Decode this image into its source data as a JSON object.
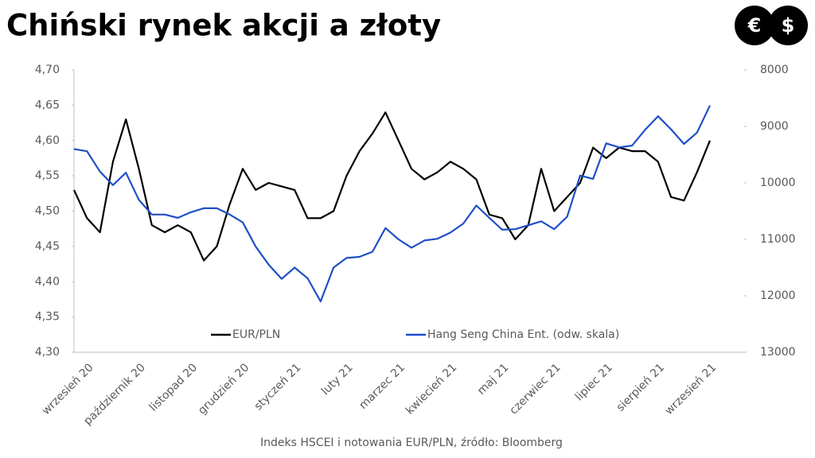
{
  "chart_data": {
    "type": "line",
    "title": "Chiński rynek akcji a złoty",
    "source": "Indeks HSCEI i notowania EUR/PLN, źródło: Bloomberg",
    "logo": [
      "€",
      "$"
    ],
    "categories": [
      "wrzesień 20",
      null,
      null,
      null,
      "październik 20",
      null,
      null,
      null,
      "listopad 20",
      null,
      null,
      null,
      "grudzień 20",
      null,
      null,
      null,
      "styczeń 21",
      null,
      null,
      null,
      "luty 21",
      null,
      null,
      null,
      "marzec 21",
      null,
      null,
      null,
      "kwiecień 21",
      null,
      null,
      null,
      "maj 21",
      null,
      null,
      null,
      "czerwiec 21",
      null,
      null,
      null,
      "lipiec 21",
      null,
      null,
      null,
      "sierpień 21",
      null,
      null,
      null,
      "wrzesień 21",
      null
    ],
    "ylim": [
      4.3,
      4.7
    ],
    "yticks": [
      {
        "value": 4.3,
        "label": "4,30"
      },
      {
        "value": 4.35,
        "label": "4,35"
      },
      {
        "value": 4.4,
        "label": "4,40"
      },
      {
        "value": 4.45,
        "label": "4,45"
      },
      {
        "value": 4.5,
        "label": "4,50"
      },
      {
        "value": 4.55,
        "label": "4,55"
      },
      {
        "value": 4.6,
        "label": "4,60"
      },
      {
        "value": 4.65,
        "label": "4,65"
      },
      {
        "value": 4.7,
        "label": "4,70"
      }
    ],
    "y2lim": [
      13000,
      8000
    ],
    "y2ticks": [
      13000,
      12000,
      11000,
      10000,
      9000,
      8000
    ],
    "series": [
      {
        "name": "EUR/PLN",
        "color": "#000000",
        "values": [
          4.53,
          4.49,
          4.47,
          4.57,
          4.63,
          4.56,
          4.48,
          4.47,
          4.48,
          4.47,
          4.43,
          4.45,
          4.51,
          4.56,
          4.53,
          4.54,
          4.535,
          4.53,
          4.49,
          4.49,
          4.5,
          4.55,
          4.585,
          4.61,
          4.64,
          4.6,
          4.56,
          4.545,
          4.555,
          4.57,
          4.56,
          4.545,
          4.495,
          4.49,
          4.46,
          4.48,
          4.56,
          4.5,
          4.52,
          4.54,
          4.59,
          4.575,
          4.59,
          4.585,
          4.585,
          4.57,
          4.52,
          4.515,
          4.555,
          4.6
        ]
      },
      {
        "name": "Hang Seng China Ent. (odw. skala)",
        "color": "#1f4fc8",
        "axis": "y2",
        "values": [
          9400,
          9440,
          9800,
          10040,
          9820,
          10300,
          10560,
          10560,
          10620,
          10520,
          10450,
          10450,
          10560,
          10700,
          11130,
          11450,
          11700,
          11500,
          11690,
          12100,
          11500,
          11330,
          11310,
          11220,
          10800,
          11000,
          11150,
          11020,
          10990,
          10880,
          10720,
          10400,
          10620,
          10830,
          10820,
          10750,
          10680,
          10820,
          10600,
          9870,
          9930,
          9300,
          9370,
          9340,
          9060,
          8820,
          9050,
          9310,
          9110,
          8630
        ]
      }
    ],
    "legend": "bottom"
  }
}
